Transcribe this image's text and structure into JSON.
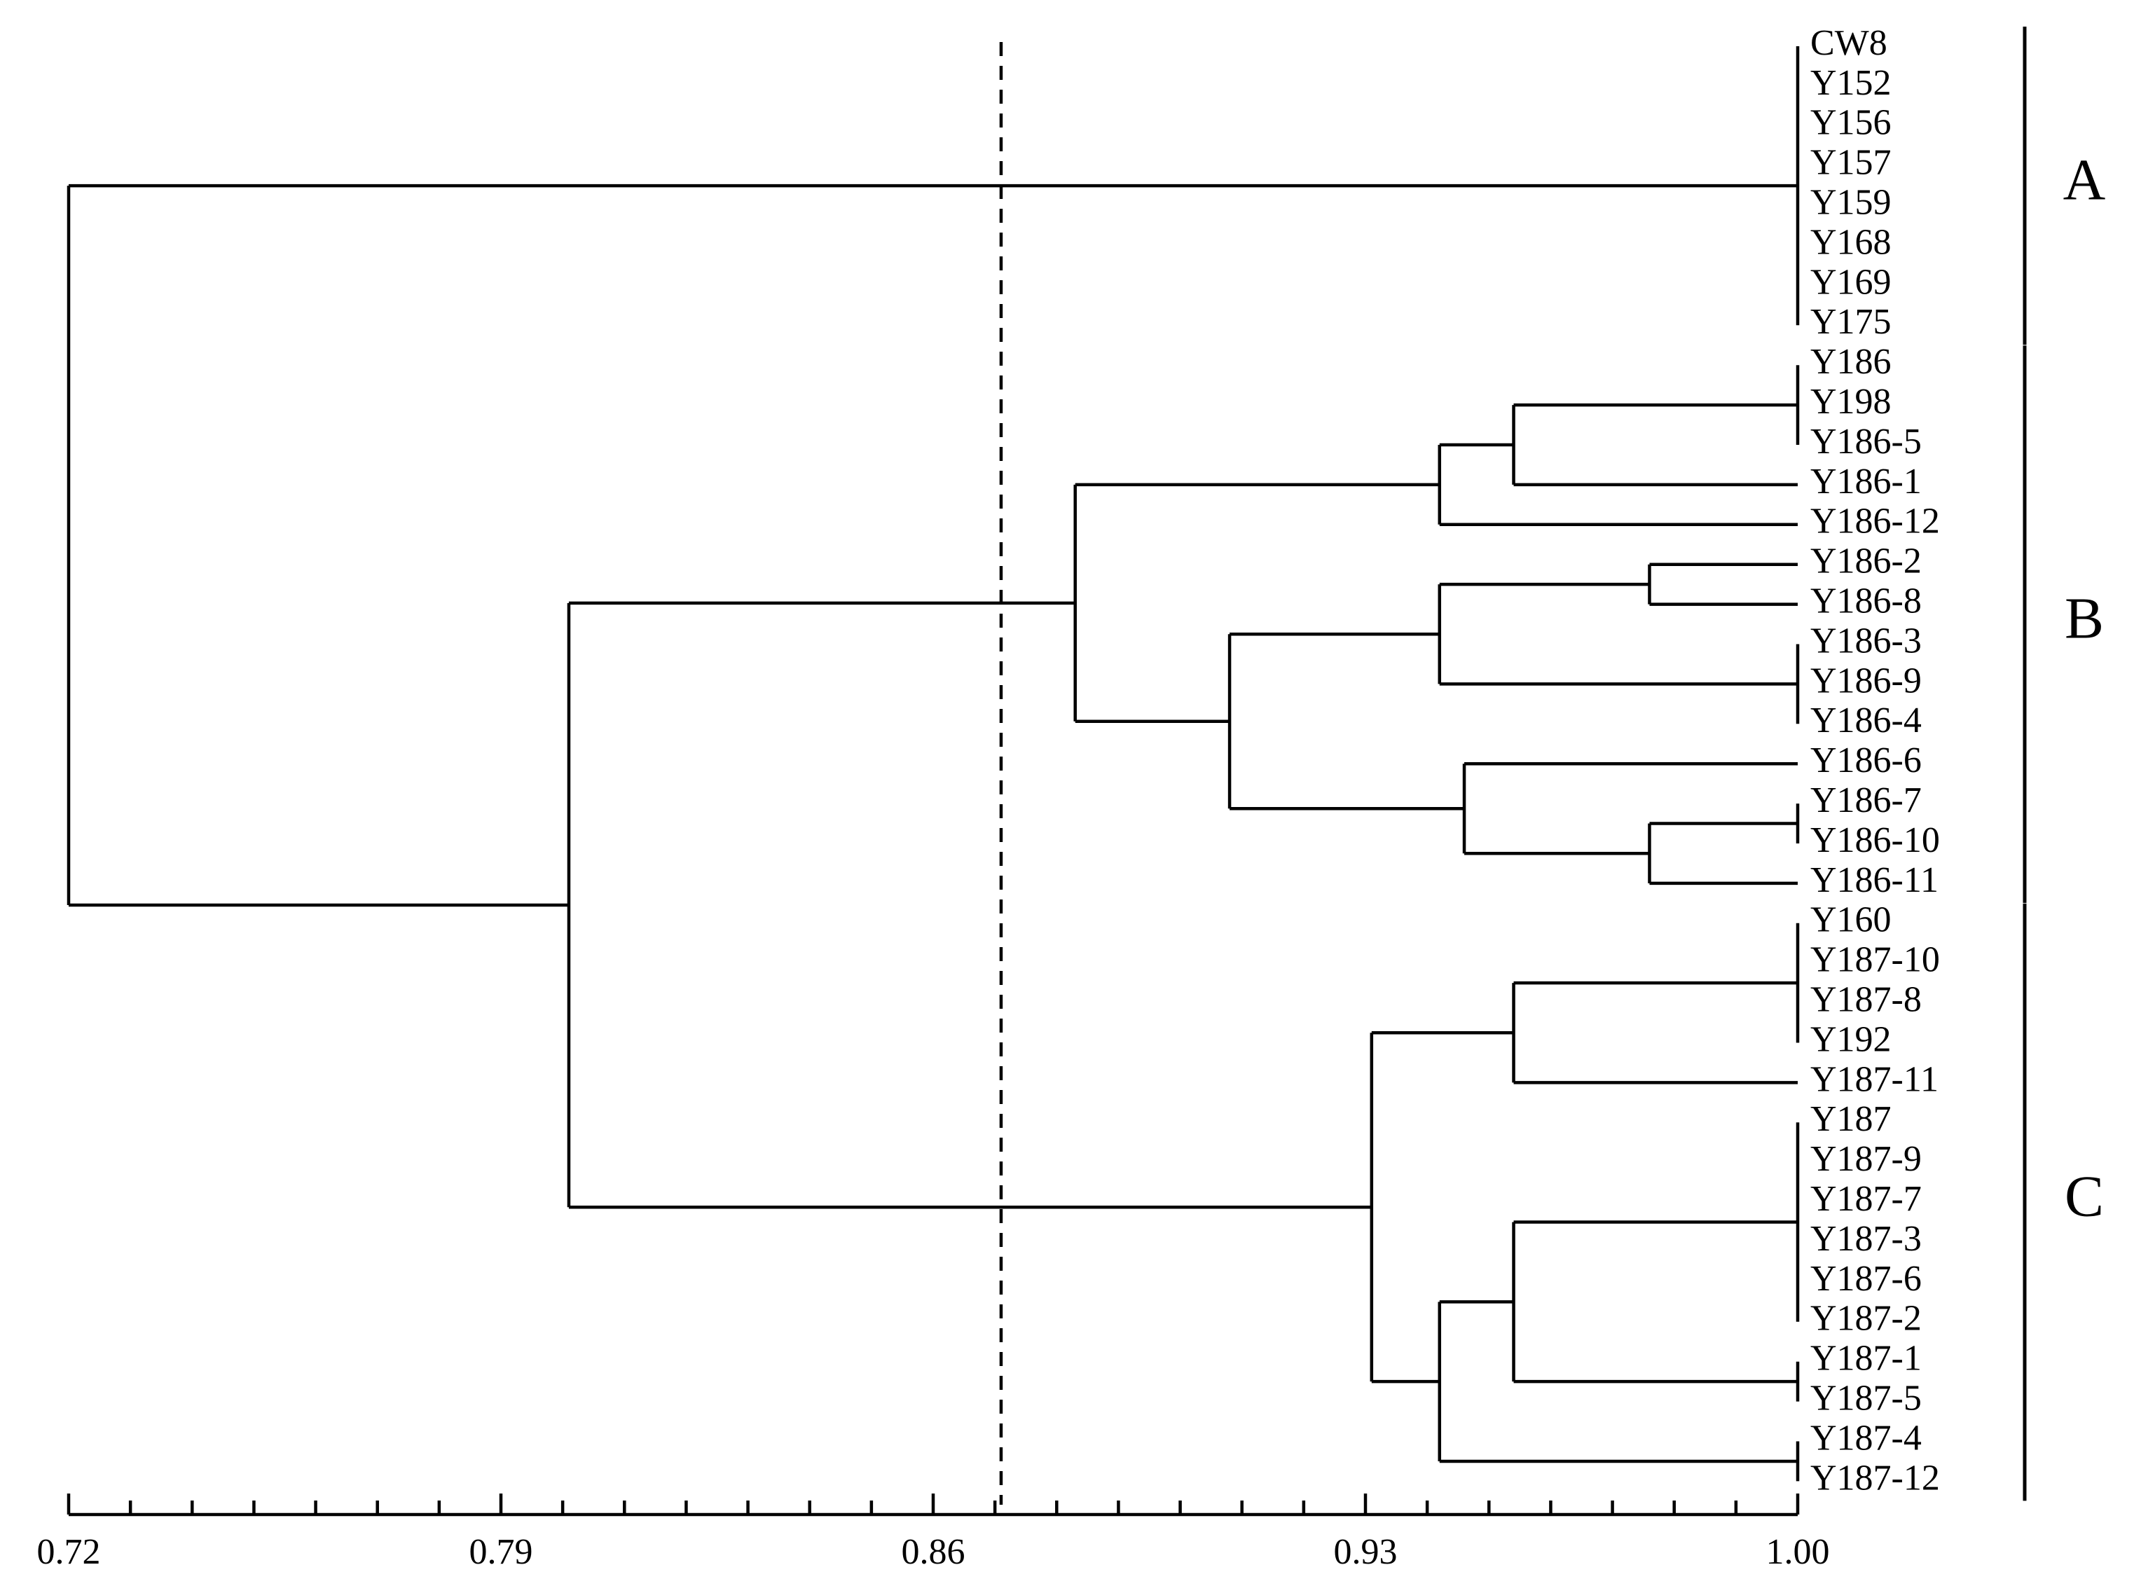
{
  "leaves": [
    "CW8",
    "Y152",
    "Y156",
    "Y157",
    "Y159",
    "Y168",
    "Y169",
    "Y175",
    "Y186",
    "Y198",
    "Y186-5",
    "Y186-1",
    "Y186-12",
    "Y186-2",
    "Y186-8",
    "Y186-3",
    "Y186-9",
    "Y186-4",
    "Y186-6",
    "Y186-7",
    "Y186-10",
    "Y186-11",
    "Y160",
    "Y187-10",
    "Y187-8",
    "Y192",
    "Y187-11",
    "Y187",
    "Y187-9",
    "Y187-7",
    "Y187-3",
    "Y187-6",
    "Y187-2",
    "Y187-1",
    "Y187-5",
    "Y187-4",
    "Y187-12"
  ],
  "clusters": [
    {
      "label": "A",
      "first": 0,
      "last": 7
    },
    {
      "label": "B",
      "first": 8,
      "last": 21
    },
    {
      "label": "C",
      "first": 22,
      "last": 36
    }
  ],
  "axis": {
    "min": 0.72,
    "max": 1.0,
    "ticks": [
      "0.72",
      "0.79",
      "0.86",
      "0.93",
      "1.00"
    ],
    "tick_values": [
      0.72,
      0.79,
      0.86,
      0.93,
      1.0
    ],
    "minor_step": 0.01
  },
  "cutoff": 0.871,
  "tree": {
    "h": 0.72,
    "c": [
      {
        "h": 1.0,
        "c": [
          0,
          1,
          2,
          3,
          4,
          5,
          6,
          7
        ]
      },
      {
        "h": 0.801,
        "c": [
          {
            "h": 0.883,
            "c": [
              {
                "h": 0.942,
                "c": [
                  {
                    "h": 0.954,
                    "c": [
                      {
                        "h": 1.0,
                        "c": [
                          8,
                          9,
                          10
                        ]
                      },
                      11
                    ]
                  },
                  12
                ]
              },
              {
                "h": 0.908,
                "c": [
                  {
                    "h": 0.942,
                    "c": [
                      {
                        "h": 0.976,
                        "c": [
                          13,
                          14
                        ]
                      },
                      {
                        "h": 1.0,
                        "c": [
                          15,
                          16,
                          17
                        ]
                      }
                    ]
                  },
                  {
                    "h": 0.946,
                    "c": [
                      18,
                      {
                        "h": 0.976,
                        "c": [
                          {
                            "h": 1.0,
                            "c": [
                              19,
                              20
                            ]
                          },
                          21
                        ]
                      }
                    ]
                  }
                ]
              }
            ]
          },
          {
            "h": 0.931,
            "c": [
              {
                "h": 0.954,
                "c": [
                  {
                    "h": 1.0,
                    "c": [
                      22,
                      23,
                      24,
                      25
                    ]
                  },
                  26
                ]
              },
              {
                "h": 0.942,
                "c": [
                  {
                    "h": 0.954,
                    "c": [
                      {
                        "h": 1.0,
                        "c": [
                          27,
                          28,
                          29,
                          30,
                          31,
                          32
                        ]
                      },
                      {
                        "h": 1.0,
                        "c": [
                          33,
                          34
                        ]
                      }
                    ]
                  },
                  {
                    "h": 1.0,
                    "c": [
                      35,
                      36
                    ]
                  }
                ]
              }
            ]
          }
        ]
      }
    ]
  }
}
